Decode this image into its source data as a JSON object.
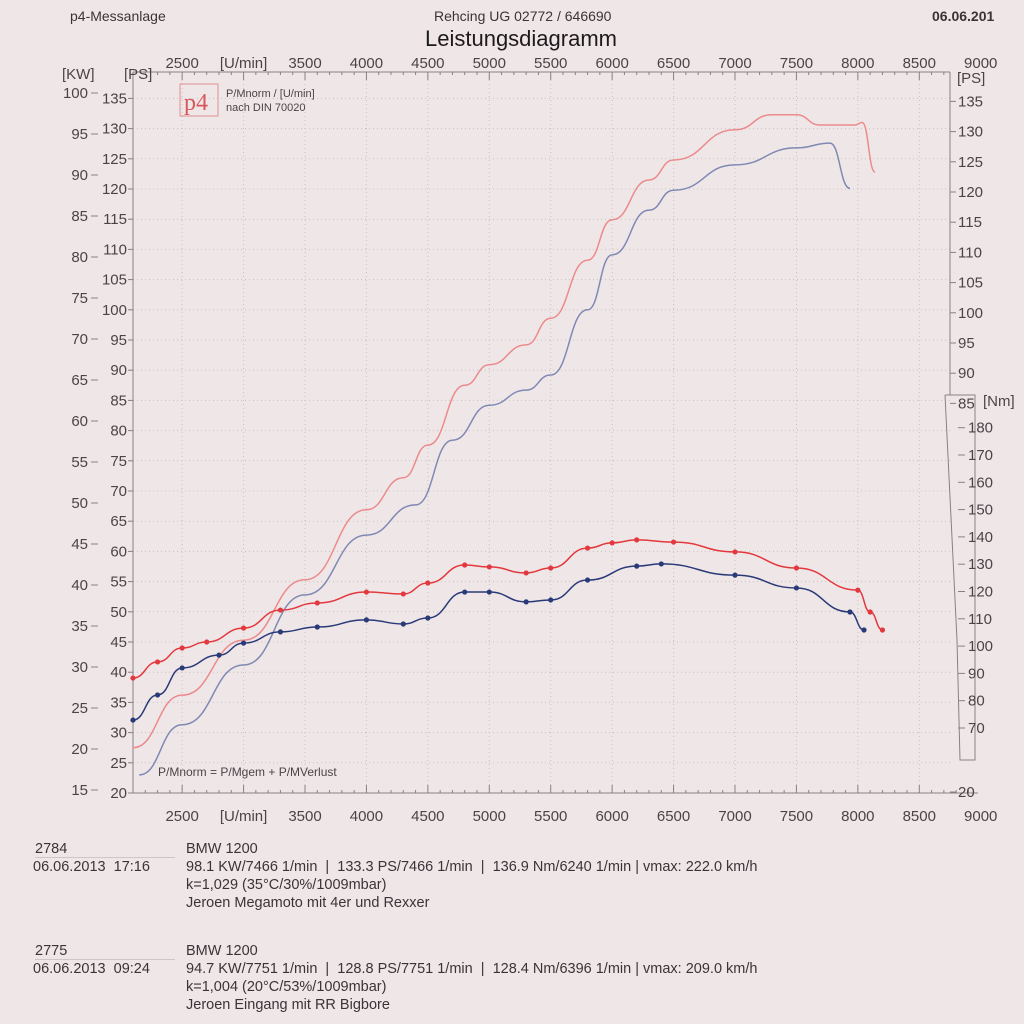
{
  "header": {
    "left": "p4-Messanlage",
    "center": "Rehcing UG  02772 / 646690",
    "right": "06.06.201",
    "title": "Leistungsdiagramm"
  },
  "legend_box": {
    "logo": "p4",
    "line1": "P/Mnorm / [U/min]",
    "line2": "nach DIN 70020"
  },
  "formula": "P/Mnorm = P/Mgem + P/MVerlust",
  "runs": [
    {
      "id": "2784",
      "model": "BMW 1200",
      "datetime": "06.06.2013  17:16",
      "stats": "98.1 KW/7466 1/min  |  133.3 PS/7466 1/min  |  136.9 Nm/6240 1/min | vmax: 222.0 km/h",
      "k": "k=1,029 (35°C/30%/1009mbar)",
      "note": "Jeroen Megamoto mit 4er und Rexxer",
      "color": "#e2383e"
    },
    {
      "id": "2775",
      "model": "BMW 1200",
      "datetime": "06.06.2013  09:24",
      "stats": "94.7 KW/7751 1/min  |  128.8 PS/7751 1/min  |  128.4 Nm/6396 1/min | vmax: 209.0 km/h",
      "k": "k=1,004 (20°C/53%/1009mbar)",
      "note": "Jeroen Eingang mit RR Bigbore",
      "color": "#2a3a78"
    }
  ],
  "chart_data": {
    "type": "line",
    "title": "Leistungsdiagramm",
    "xlabel": "[U/min]",
    "x_ticks": [
      "2500",
      "[U/min]",
      "3500",
      "4000",
      "4500",
      "5000",
      "5500",
      "6000",
      "6500",
      "7000",
      "7500",
      "8000",
      "8500",
      "9000"
    ],
    "xlim": [
      2100,
      8750
    ],
    "y_left_kw": {
      "label": "[KW]",
      "ticks": [
        15,
        20,
        25,
        30,
        35,
        40,
        45,
        50,
        55,
        60,
        65,
        70,
        75,
        80,
        85,
        90,
        95,
        100
      ]
    },
    "y_left_ps": {
      "label": "[PS]",
      "ticks": [
        20,
        25,
        30,
        35,
        40,
        45,
        50,
        55,
        60,
        65,
        70,
        75,
        80,
        85,
        90,
        95,
        100,
        105,
        110,
        115,
        120,
        125,
        130,
        135
      ],
      "ylim": [
        20,
        140
      ]
    },
    "y_right_ps": {
      "label": "[PS]",
      "ticks": [
        20,
        85,
        90,
        95,
        100,
        105,
        110,
        115,
        120,
        125,
        130,
        135
      ]
    },
    "y_right_nm": {
      "label": "[Nm]",
      "ticks": [
        70,
        80,
        90,
        100,
        110,
        120,
        130,
        140,
        150,
        160,
        170,
        180
      ],
      "ylim": [
        65,
        185
      ]
    },
    "grid": true,
    "series": [
      {
        "name": "2784",
        "quantity": "power",
        "unit": "PS",
        "color": "#ec8a8c",
        "x": [
          2100,
          2500,
          3000,
          3500,
          4000,
          4300,
          4500,
          4800,
          5000,
          5300,
          5500,
          5800,
          6000,
          6300,
          6500,
          7000,
          7300,
          7500,
          7690,
          7977,
          8035,
          8140
        ],
        "y": [
          27.5,
          36.2,
          45.3,
          55.3,
          66.9,
          72.2,
          77.6,
          87.5,
          90.9,
          94.2,
          98.6,
          108.2,
          114.9,
          121.5,
          124.8,
          129.8,
          132.3,
          132.3,
          130.6,
          130.6,
          131.0,
          122.8
        ]
      },
      {
        "name": "2775",
        "quantity": "power",
        "unit": "PS",
        "color": "#8088b4",
        "x": [
          2150,
          2500,
          3000,
          3500,
          4000,
          4400,
          4700,
          5000,
          5300,
          5500,
          5800,
          6000,
          6300,
          6500,
          7000,
          7500,
          7773,
          7936
        ],
        "y": [
          23.0,
          31.3,
          41.2,
          52.8,
          62.7,
          67.7,
          78.4,
          84.2,
          86.7,
          89.2,
          100.0,
          109.1,
          116.5,
          119.8,
          124.0,
          126.8,
          127.6,
          120.1
        ]
      },
      {
        "name": "2784",
        "quantity": "torque",
        "unit": "Nm",
        "color": "#e2383e",
        "x": [
          2100,
          2300,
          2500,
          2700,
          3000,
          3300,
          3600,
          4000,
          4300,
          4500,
          4800,
          5000,
          5300,
          5500,
          5800,
          6000,
          6200,
          6500,
          7000,
          7500,
          8000,
          8100,
          8200
        ],
        "y": [
          88.3,
          94.2,
          99.3,
          101.5,
          106.6,
          113.2,
          115.8,
          119.8,
          119.1,
          123.1,
          129.7,
          129.0,
          126.8,
          128.6,
          135.9,
          137.8,
          138.9,
          138.1,
          134.5,
          128.6,
          120.5,
          112.5,
          105.9
        ]
      },
      {
        "name": "2775",
        "quantity": "torque",
        "unit": "Nm",
        "color": "#2a3a78",
        "x": [
          2100,
          2300,
          2500,
          2800,
          3000,
          3300,
          3600,
          4000,
          4300,
          4500,
          4800,
          5000,
          5300,
          5500,
          5800,
          6200,
          6400,
          7000,
          7500,
          7936,
          8050
        ],
        "y": [
          72.9,
          82.1,
          92.0,
          96.7,
          101.1,
          105.2,
          107.0,
          109.6,
          108.1,
          110.3,
          119.8,
          119.8,
          116.2,
          116.9,
          124.2,
          129.3,
          130.1,
          126.0,
          121.3,
          112.5,
          105.9
        ]
      }
    ]
  }
}
